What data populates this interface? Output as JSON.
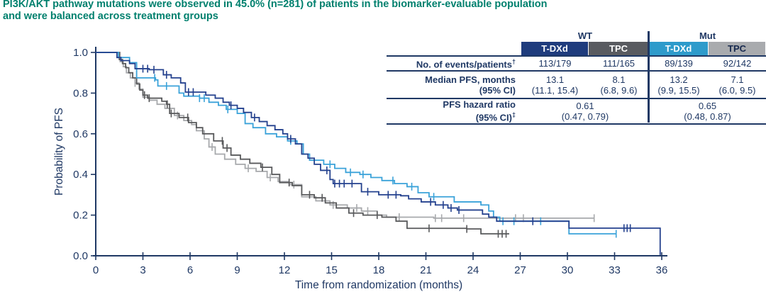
{
  "page": {
    "title_line1": "PI3K/AKT pathway mutations were observed in 45.0% (n=281) of patients in the biomarker-evaluable population",
    "title_line2": "and were balanced across treatment groups",
    "title_color": "#00806e",
    "accent_navy": "#1f3864"
  },
  "table": {
    "group_headers": [
      {
        "label": "WT"
      },
      {
        "label": "Mut"
      }
    ],
    "col_headers": [
      {
        "label": "T-DXd",
        "bg": "#1f3c7d",
        "fg": "#ffffff"
      },
      {
        "label": "TPC",
        "bg": "#595b60",
        "fg": "#ffffff"
      },
      {
        "label": "T-DXd",
        "bg": "#2e9bcb",
        "fg": "#ffffff"
      },
      {
        "label": "TPC",
        "bg": "#a9abae",
        "fg": "#17294f"
      }
    ],
    "rows": [
      {
        "label": "No. of events/patients",
        "label_sup": "†",
        "values": [
          "113/179",
          "111/165",
          "89/139",
          "92/142"
        ]
      },
      {
        "label": "Median PFS, months",
        "label2": "(95% CI)",
        "values": [
          "13.1",
          "8.1",
          "13.2",
          "7.1"
        ],
        "values2": [
          "(11.1, 15.4)",
          "(6.8, 9.6)",
          "(9.9, 15.5)",
          "(6.0, 9.5)"
        ]
      },
      {
        "label": "PFS hazard ratio",
        "label2": "(95% CI)",
        "label2_sup": "‡",
        "values_merged": [
          "0.61",
          "0.65"
        ],
        "values2_merged": [
          "(0.47, 0.79)",
          "(0.48, 0.87)"
        ]
      }
    ]
  },
  "chart_data": {
    "type": "line",
    "subtype": "kaplan-meier-step",
    "xlabel": "Time from randomization (months)",
    "ylabel": "Probability of PFS",
    "xlim": [
      0,
      36
    ],
    "ylim": [
      0.0,
      1.0
    ],
    "xticks": [
      0,
      3,
      6,
      9,
      12,
      15,
      18,
      21,
      24,
      27,
      30,
      33,
      36
    ],
    "yticks": [
      0.0,
      0.2,
      0.4,
      0.6,
      0.8,
      1.0
    ],
    "grid": false,
    "legend": "none (table acts as legend)",
    "axis_color": "#1f3864",
    "series": [
      {
        "name": "TPC (Mut)",
        "color": "#a7a9ac",
        "points": [
          [
            0,
            1.0
          ],
          [
            1.35,
            1.0
          ],
          [
            1.55,
            0.955
          ],
          [
            1.75,
            0.93
          ],
          [
            1.95,
            0.9
          ],
          [
            2.2,
            0.875
          ],
          [
            2.5,
            0.85
          ],
          [
            2.75,
            0.82
          ],
          [
            3.0,
            0.78
          ],
          [
            3.4,
            0.765
          ],
          [
            3.9,
            0.745
          ],
          [
            4.4,
            0.725
          ],
          [
            5.0,
            0.69
          ],
          [
            5.6,
            0.665
          ],
          [
            6.1,
            0.645
          ],
          [
            6.4,
            0.615
          ],
          [
            6.9,
            0.575
          ],
          [
            7.2,
            0.535
          ],
          [
            7.6,
            0.5
          ],
          [
            8.2,
            0.475
          ],
          [
            8.9,
            0.45
          ],
          [
            9.5,
            0.43
          ],
          [
            10.2,
            0.415
          ],
          [
            10.9,
            0.385
          ],
          [
            11.6,
            0.365
          ],
          [
            12.3,
            0.35
          ],
          [
            13.1,
            0.29
          ],
          [
            14.0,
            0.27
          ],
          [
            14.9,
            0.25
          ],
          [
            16.0,
            0.235
          ],
          [
            16.9,
            0.22
          ],
          [
            17.9,
            0.2
          ],
          [
            18.5,
            0.19
          ],
          [
            21.5,
            0.185
          ],
          [
            31.7,
            0.185
          ]
        ],
        "censors": [
          2.5,
          5.2,
          7.4,
          9.7,
          11.1,
          12.6,
          15.1,
          16.6,
          17.3,
          19.3,
          21.6,
          22.0,
          23.4,
          26.7,
          27.2,
          31.7
        ]
      },
      {
        "name": "TPC (WT)",
        "color": "#58595b",
        "points": [
          [
            0,
            1.0
          ],
          [
            1.35,
            1.0
          ],
          [
            1.5,
            0.965
          ],
          [
            1.7,
            0.945
          ],
          [
            1.9,
            0.925
          ],
          [
            2.1,
            0.9
          ],
          [
            2.35,
            0.875
          ],
          [
            2.6,
            0.845
          ],
          [
            2.8,
            0.815
          ],
          [
            3.0,
            0.79
          ],
          [
            3.3,
            0.775
          ],
          [
            4.2,
            0.76
          ],
          [
            4.5,
            0.745
          ],
          [
            4.7,
            0.7
          ],
          [
            5.3,
            0.68
          ],
          [
            5.9,
            0.655
          ],
          [
            6.4,
            0.63
          ],
          [
            6.8,
            0.6
          ],
          [
            7.5,
            0.565
          ],
          [
            8.1,
            0.53
          ],
          [
            8.6,
            0.495
          ],
          [
            9.2,
            0.475
          ],
          [
            9.8,
            0.455
          ],
          [
            10.5,
            0.435
          ],
          [
            11.2,
            0.4
          ],
          [
            11.7,
            0.36
          ],
          [
            12.5,
            0.345
          ],
          [
            13.1,
            0.3
          ],
          [
            13.9,
            0.285
          ],
          [
            14.6,
            0.26
          ],
          [
            15.3,
            0.235
          ],
          [
            16.1,
            0.21
          ],
          [
            17.0,
            0.2
          ],
          [
            18.2,
            0.19
          ],
          [
            19.1,
            0.17
          ],
          [
            19.8,
            0.135
          ],
          [
            23.6,
            0.132
          ],
          [
            24.5,
            0.108
          ],
          [
            26.3,
            0.108
          ]
        ],
        "censors": [
          3.1,
          3.4,
          4.55,
          4.8,
          5.85,
          8.05,
          8.35,
          10.6,
          12.3,
          13.6,
          14.4,
          16.4,
          17.9,
          21.2,
          23.6,
          25.6,
          25.85,
          26.1
        ]
      },
      {
        "name": "T-DXd (Mut)",
        "color": "#3aa2d9",
        "points": [
          [
            0,
            1.0
          ],
          [
            1.2,
            1.0
          ],
          [
            1.45,
            0.975
          ],
          [
            2.15,
            0.95
          ],
          [
            2.6,
            0.875
          ],
          [
            3.8,
            0.865
          ],
          [
            3.95,
            0.835
          ],
          [
            5.3,
            0.8
          ],
          [
            5.6,
            0.785
          ],
          [
            6.6,
            0.775
          ],
          [
            7.2,
            0.755
          ],
          [
            7.8,
            0.74
          ],
          [
            8.3,
            0.72
          ],
          [
            9.0,
            0.7
          ],
          [
            9.5,
            0.65
          ],
          [
            10.0,
            0.63
          ],
          [
            10.8,
            0.6
          ],
          [
            11.5,
            0.585
          ],
          [
            12.2,
            0.565
          ],
          [
            12.8,
            0.55
          ],
          [
            13.2,
            0.5
          ],
          [
            13.6,
            0.47
          ],
          [
            14.5,
            0.45
          ],
          [
            15.2,
            0.43
          ],
          [
            15.9,
            0.41
          ],
          [
            16.8,
            0.4
          ],
          [
            17.5,
            0.385
          ],
          [
            18.2,
            0.37
          ],
          [
            19.0,
            0.355
          ],
          [
            19.8,
            0.34
          ],
          [
            20.5,
            0.31
          ],
          [
            21.2,
            0.29
          ],
          [
            22.8,
            0.265
          ],
          [
            24.5,
            0.25
          ],
          [
            25.0,
            0.22
          ],
          [
            25.3,
            0.19
          ],
          [
            25.7,
            0.17
          ],
          [
            30.1,
            0.108
          ],
          [
            33.1,
            0.108
          ]
        ],
        "censors": [
          3.75,
          4.5,
          6.6,
          6.9,
          8.4,
          12.4,
          14.9,
          16.2,
          17.0,
          18.9,
          20.1,
          21.5,
          25.9,
          26.6,
          28.3,
          33.1
        ]
      },
      {
        "name": "T-DXd (WT)",
        "color": "#24418e",
        "points": [
          [
            0,
            1.0
          ],
          [
            1.1,
            1.0
          ],
          [
            1.35,
            0.975
          ],
          [
            1.6,
            0.96
          ],
          [
            2.15,
            0.945
          ],
          [
            2.5,
            0.92
          ],
          [
            3.4,
            0.915
          ],
          [
            4.3,
            0.89
          ],
          [
            4.8,
            0.875
          ],
          [
            5.4,
            0.85
          ],
          [
            5.7,
            0.805
          ],
          [
            7.0,
            0.79
          ],
          [
            7.6,
            0.775
          ],
          [
            8.1,
            0.755
          ],
          [
            8.5,
            0.74
          ],
          [
            9.0,
            0.725
          ],
          [
            9.4,
            0.705
          ],
          [
            9.9,
            0.68
          ],
          [
            10.4,
            0.66
          ],
          [
            10.9,
            0.64
          ],
          [
            11.4,
            0.62
          ],
          [
            11.9,
            0.6
          ],
          [
            12.2,
            0.575
          ],
          [
            12.7,
            0.55
          ],
          [
            13.1,
            0.5
          ],
          [
            13.5,
            0.48
          ],
          [
            13.9,
            0.45
          ],
          [
            14.3,
            0.42
          ],
          [
            14.9,
            0.375
          ],
          [
            15.1,
            0.355
          ],
          [
            16.9,
            0.315
          ],
          [
            18.0,
            0.3
          ],
          [
            19.4,
            0.295
          ],
          [
            19.9,
            0.28
          ],
          [
            20.7,
            0.265
          ],
          [
            21.6,
            0.25
          ],
          [
            22.4,
            0.235
          ],
          [
            23.0,
            0.225
          ],
          [
            24.6,
            0.205
          ],
          [
            25.0,
            0.19
          ],
          [
            25.5,
            0.17
          ],
          [
            30.1,
            0.136
          ],
          [
            35.85,
            0.136
          ],
          [
            35.9,
            0.004
          ]
        ],
        "censors": [
          3.0,
          3.3,
          3.7,
          4.5,
          5.9,
          6.2,
          8.6,
          10.1,
          12.4,
          14.7,
          15.2,
          15.5,
          15.8,
          16.3,
          17.3,
          18.6,
          19.1,
          21.3,
          22.1,
          22.6,
          23.1,
          27.8,
          33.6,
          33.8,
          34.0
        ]
      }
    ]
  }
}
